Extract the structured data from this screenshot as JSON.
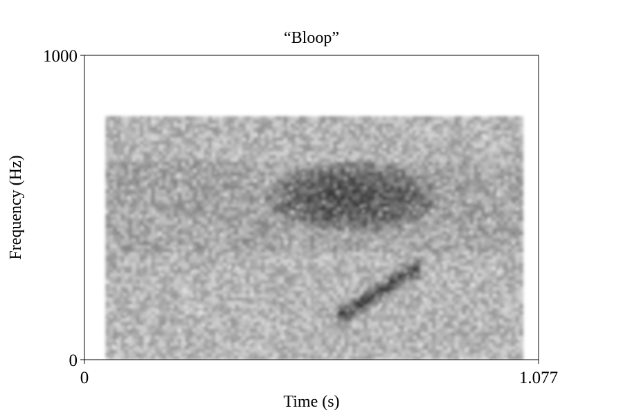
{
  "chart_data": {
    "type": "heatmap",
    "subtype": "spectrogram",
    "title": "“Bloop”",
    "xlabel": "Time (s)",
    "ylabel": "Frequency (Hz)",
    "xlim": [
      0,
      1.077
    ],
    "ylim": [
      0,
      1000
    ],
    "x_ticks": [
      "0",
      "1.077"
    ],
    "y_ticks": [
      "0",
      "1000"
    ],
    "colormap": "grayscale (darker = higher intensity)",
    "grid": false,
    "legend": "none",
    "signal_extent": {
      "time_s": [
        0.05,
        1.04
      ],
      "frequency_hz": [
        0,
        800
      ]
    },
    "features": [
      {
        "name": "broadband background energy",
        "time_s": [
          0.05,
          1.04
        ],
        "frequency_hz": [
          0,
          800
        ],
        "intensity": 0.35
      },
      {
        "name": "dark energy blob",
        "time_s": [
          0.43,
          0.84
        ],
        "frequency_hz": [
          420,
          650
        ],
        "intensity": 0.75
      },
      {
        "name": "rising frequency sweep (bloop)",
        "time_start_s": 0.62,
        "time_end_s": 0.78,
        "freq_start_hz": 150,
        "freq_end_hz": 300,
        "intensity": 0.9
      }
    ]
  }
}
